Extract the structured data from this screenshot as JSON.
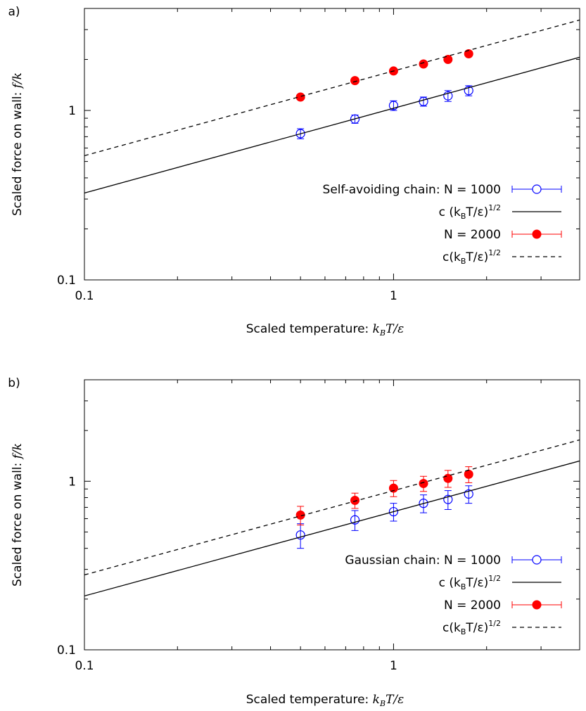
{
  "chart_data": [
    {
      "type": "scatter",
      "panel_label": "a)",
      "xscale": "log",
      "yscale": "log",
      "xlim": [
        0.1,
        4.0
      ],
      "ylim": [
        0.1,
        4.0
      ],
      "grid": false,
      "legend_position": "right",
      "xlabel": "Scaled temperature:",
      "xlabel_math": [
        "k",
        "B",
        "T/ε"
      ],
      "ylabel": "Scaled force on wall:",
      "ylabel_math": "f/k",
      "x_tick_labels": [
        {
          "value": 0.1,
          "label": "0.1"
        },
        {
          "value": 1,
          "label": "1"
        }
      ],
      "y_tick_labels": [
        {
          "value": 0.1,
          "label": "0.1"
        },
        {
          "value": 1,
          "label": "1"
        }
      ],
      "series": [
        {
          "name": "Self-avoiding chain: N = 1000",
          "kind": "points",
          "marker": "open-circle",
          "color": "#0000ff",
          "x": [
            0.5,
            0.75,
            1.0,
            1.25,
            1.5,
            1.75
          ],
          "y": [
            0.73,
            0.89,
            1.07,
            1.13,
            1.22,
            1.31
          ],
          "err": [
            0.05,
            0.05,
            0.07,
            0.07,
            0.09,
            0.09
          ]
        },
        {
          "name": "c (k_BT/ε)^1/2",
          "kind": "fit",
          "style": "solid",
          "color": "#000000",
          "coef": 1.03
        },
        {
          "name": "N = 2000",
          "kind": "points",
          "marker": "filled-circle",
          "color": "#ff0000",
          "x": [
            0.5,
            0.75,
            1.0,
            1.25,
            1.5,
            1.75
          ],
          "y": [
            1.2,
            1.5,
            1.71,
            1.88,
            2.0,
            2.16
          ],
          "err": [
            0.03,
            0.04,
            0.04,
            0.05,
            0.05,
            0.06
          ]
        },
        {
          "name": "c(k_BT/ε)^1/2",
          "kind": "fit",
          "style": "dashed",
          "color": "#000000",
          "coef": 1.71
        }
      ],
      "legend": [
        {
          "text": "Self-avoiding chain: N = 1000"
        },
        {
          "pre": "c (k",
          "sub": "B",
          "post": "T/ε)",
          "sup": "1/2"
        },
        {
          "text": "N = 2000"
        },
        {
          "pre": "c(k",
          "sub": "B",
          "post": "T/ε)",
          "sup": "1/2"
        }
      ]
    },
    {
      "type": "scatter",
      "panel_label": "b)",
      "xscale": "log",
      "yscale": "log",
      "xlim": [
        0.1,
        4.0
      ],
      "ylim": [
        0.1,
        4.0
      ],
      "grid": false,
      "legend_position": "right",
      "xlabel": "Scaled temperature:",
      "xlabel_math": [
        "k",
        "B",
        "T/ε"
      ],
      "ylabel": "Scaled force on wall:",
      "ylabel_math": "f/k",
      "x_tick_labels": [
        {
          "value": 0.1,
          "label": "0.1"
        },
        {
          "value": 1,
          "label": "1"
        }
      ],
      "y_tick_labels": [
        {
          "value": 0.1,
          "label": "0.1"
        },
        {
          "value": 1,
          "label": "1"
        }
      ],
      "series": [
        {
          "name": "Gaussian chain: N = 1000",
          "kind": "points",
          "marker": "open-circle",
          "color": "#0000ff",
          "x": [
            0.5,
            0.75,
            1.0,
            1.25,
            1.5,
            1.75
          ],
          "y": [
            0.48,
            0.59,
            0.66,
            0.74,
            0.78,
            0.84
          ],
          "err": [
            0.08,
            0.08,
            0.08,
            0.09,
            0.1,
            0.1
          ]
        },
        {
          "name": "c (k_BT/ε)^1/2",
          "kind": "fit",
          "style": "solid",
          "color": "#000000",
          "coef": 0.66
        },
        {
          "name": "N = 2000",
          "kind": "points",
          "marker": "filled-circle",
          "color": "#ff0000",
          "x": [
            0.5,
            0.75,
            1.0,
            1.25,
            1.5,
            1.75
          ],
          "y": [
            0.63,
            0.77,
            0.91,
            0.97,
            1.04,
            1.1
          ],
          "err": [
            0.08,
            0.08,
            0.1,
            0.1,
            0.12,
            0.12
          ]
        },
        {
          "name": "c(k_BT/ε)^1/2",
          "kind": "fit",
          "style": "dashed",
          "color": "#000000",
          "coef": 0.88
        }
      ],
      "legend": [
        {
          "text": "Gaussian chain: N = 1000"
        },
        {
          "pre": "c (k",
          "sub": "B",
          "post": "T/ε)",
          "sup": "1/2"
        },
        {
          "text": "N = 2000"
        },
        {
          "pre": "c(k",
          "sub": "B",
          "post": "T/ε)",
          "sup": "1/2"
        }
      ]
    }
  ]
}
